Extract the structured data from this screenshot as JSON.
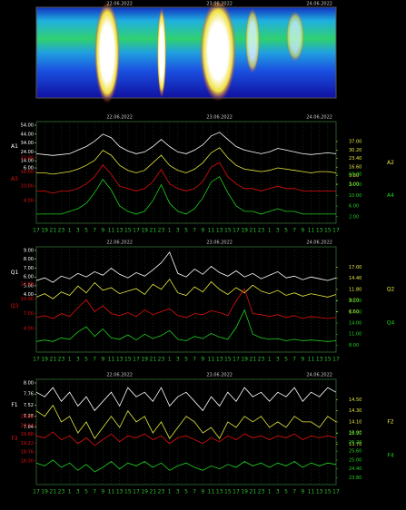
{
  "chart_data": [
    {
      "type": "line",
      "categories": [
        "17",
        "19",
        "21",
        "23",
        "1",
        "3",
        "5",
        "7",
        "9",
        "11",
        "13",
        "15",
        "17",
        "19",
        "21",
        "23",
        "1",
        "3",
        "5",
        "7",
        "9",
        "11",
        "13",
        "15",
        "17",
        "19",
        "21",
        "23",
        "1",
        "3",
        "5",
        "7",
        "9",
        "11",
        "13",
        "15",
        "17"
      ],
      "dates": [
        "22.06.2022",
        "23.06.2022",
        "24.06.2022"
      ],
      "series": [
        {
          "name": "A1",
          "color": "#ffffff",
          "axis": "y",
          "ylim": [
            6,
            54
          ],
          "yticks": [
            {
              "value": 6,
              "label": "6.00"
            },
            {
              "value": 14,
              "label": "14.00"
            },
            {
              "value": 24,
              "label": "24.00"
            },
            {
              "value": 34,
              "label": "34.00"
            },
            {
              "value": 44,
              "label": "44.00"
            },
            {
              "value": 54,
              "label": "54.00"
            }
          ],
          "values": [
            22,
            21,
            20,
            21,
            22,
            26,
            30,
            36,
            44,
            40,
            30,
            25,
            22,
            24,
            30,
            38,
            30,
            24,
            22,
            26,
            32,
            42,
            46,
            38,
            30,
            26,
            24,
            22,
            24,
            28,
            26,
            24,
            22,
            21,
            22,
            23,
            22
          ]
        },
        {
          "name": "A2",
          "color": "#e8e840",
          "axis": "y2",
          "ylim": [
            3,
            37
          ],
          "yticks": [
            {
              "value": 3,
              "label": "3.00"
            },
            {
              "value": 9.8,
              "label": "9.80"
            },
            {
              "value": 16.6,
              "label": "16.60"
            },
            {
              "value": 23.4,
              "label": "23.40"
            },
            {
              "value": 30.2,
              "label": "30.20"
            },
            {
              "value": 37,
              "label": "37.00"
            }
          ],
          "values": [
            12,
            12,
            11,
            12,
            13,
            15,
            18,
            22,
            30,
            26,
            18,
            14,
            12,
            14,
            20,
            26,
            18,
            14,
            12,
            15,
            20,
            28,
            32,
            24,
            18,
            15,
            14,
            13,
            14,
            16,
            15,
            14,
            13,
            12,
            13,
            13,
            12
          ]
        },
        {
          "name": "A3",
          "color": "#e01010",
          "axis": "y",
          "ylim": [
            4,
            22
          ],
          "yticks": [
            {
              "value": 4,
              "label": "4.00"
            },
            {
              "value": 10,
              "label": "10.00"
            },
            {
              "value": 16,
              "label": "16.00"
            },
            {
              "value": 22,
              "label": "22.00"
            }
          ],
          "values": [
            8,
            8,
            7,
            8,
            8,
            9,
            11,
            14,
            19,
            15,
            10,
            9,
            8,
            9,
            12,
            17,
            11,
            9,
            8,
            9,
            12,
            18,
            20,
            14,
            11,
            9,
            9,
            8,
            9,
            10,
            9,
            9,
            8,
            8,
            8,
            8,
            8
          ]
        },
        {
          "name": "A4",
          "color": "#20d020",
          "axis": "y2",
          "ylim": [
            2,
            18
          ],
          "yticks": [
            {
              "value": 2,
              "label": "2.00"
            },
            {
              "value": 6,
              "label": "6.00"
            },
            {
              "value": 10,
              "label": "10.00"
            },
            {
              "value": 14,
              "label": "14.00"
            },
            {
              "value": 18,
              "label": "18.00"
            }
          ],
          "values": [
            3,
            3,
            3,
            3,
            4,
            5,
            7,
            11,
            16,
            12,
            6,
            4,
            3,
            4,
            8,
            14,
            7,
            4,
            3,
            5,
            9,
            15,
            17,
            11,
            6,
            4,
            4,
            3,
            4,
            5,
            4,
            4,
            3,
            3,
            3,
            3,
            3
          ]
        }
      ]
    },
    {
      "type": "line",
      "categories": [
        "17",
        "19",
        "21",
        "23",
        "1",
        "3",
        "5",
        "7",
        "9",
        "11",
        "13",
        "15",
        "17",
        "19",
        "21",
        "23",
        "1",
        "3",
        "5",
        "7",
        "9",
        "11",
        "13",
        "15",
        "17",
        "19",
        "21",
        "23",
        "1",
        "3",
        "5",
        "7",
        "9",
        "11",
        "13",
        "15",
        "17"
      ],
      "dates": [
        "22.06.2022",
        "23.06.2022",
        "24.06.2022"
      ],
      "series": [
        {
          "name": "Q1",
          "color": "#ffffff",
          "axis": "y",
          "ylim": [
            4,
            9
          ],
          "yticks": [
            {
              "value": 4,
              "label": "4.00"
            },
            {
              "value": 5,
              "label": "5.00"
            },
            {
              "value": 6,
              "label": "6.00"
            },
            {
              "value": 7,
              "label": "7.00"
            },
            {
              "value": 8,
              "label": "8.00"
            },
            {
              "value": 9,
              "label": "9.00"
            }
          ],
          "values": [
            5.6,
            5.9,
            5.4,
            6.1,
            5.8,
            6.4,
            6.0,
            6.6,
            6.2,
            7.0,
            6.3,
            5.9,
            6.5,
            6.1,
            6.8,
            7.6,
            8.8,
            6.4,
            6.0,
            6.9,
            6.3,
            7.2,
            6.5,
            6.1,
            6.7,
            6.0,
            6.4,
            5.8,
            6.2,
            6.6,
            5.9,
            6.1,
            5.7,
            6.0,
            5.8,
            5.6,
            5.9
          ]
        },
        {
          "name": "Q2",
          "color": "#e8e840",
          "axis": "y2",
          "ylim": [
            6.6,
            17
          ],
          "yticks": [
            {
              "value": 6.6,
              "label": "6.60"
            },
            {
              "value": 9.2,
              "label": "9.20"
            },
            {
              "value": 11.8,
              "label": "11.80"
            },
            {
              "value": 14.4,
              "label": "14.40"
            },
            {
              "value": 17,
              "label": "17.00"
            }
          ],
          "values": [
            10,
            10.8,
            9.6,
            11.2,
            10.4,
            12.6,
            11,
            13.4,
            11.6,
            12.2,
            10.8,
            11.4,
            12,
            10.6,
            13,
            11.8,
            14.2,
            11,
            10.4,
            12.4,
            11.2,
            13.6,
            11.8,
            10.6,
            12.2,
            11,
            12.8,
            11.4,
            10.8,
            11.6,
            10.4,
            11,
            10.2,
            10.8,
            10.4,
            10,
            10.6
          ]
        },
        {
          "name": "Q3",
          "color": "#e01010",
          "axis": "y",
          "ylim": [
            4,
            13
          ],
          "yticks": [
            {
              "value": 4,
              "label": "4.00"
            },
            {
              "value": 7,
              "label": "7.00"
            },
            {
              "value": 10,
              "label": "10.00"
            },
            {
              "value": 13,
              "label": "13.00"
            }
          ],
          "values": [
            6.2,
            6.6,
            6,
            7,
            6.4,
            8.2,
            9.8,
            7.4,
            8.6,
            7,
            6.6,
            7.2,
            6.4,
            7.8,
            6.8,
            7.4,
            8,
            6.6,
            6.2,
            7,
            6.8,
            7.6,
            7.2,
            6.6,
            9.6,
            12,
            7,
            6.8,
            6.4,
            6.8,
            6.2,
            6.6,
            6,
            6.4,
            6.2,
            6,
            6.2
          ]
        },
        {
          "name": "Q4",
          "color": "#20d020",
          "axis": "y2",
          "ylim": [
            8,
            20
          ],
          "yticks": [
            {
              "value": 8,
              "label": "8.00"
            },
            {
              "value": 11,
              "label": "11.00"
            },
            {
              "value": 14,
              "label": "14.00"
            },
            {
              "value": 17,
              "label": "17.00"
            },
            {
              "value": 20,
              "label": "20.00"
            }
          ],
          "values": [
            9,
            9.4,
            9,
            10,
            9.6,
            11.6,
            13,
            10.4,
            12.4,
            10,
            9.6,
            10.8,
            9.4,
            11,
            9.8,
            10.6,
            12,
            9.6,
            9.2,
            10.4,
            9.8,
            11.2,
            10.2,
            9.6,
            12.8,
            17.6,
            11,
            10,
            9.6,
            9.8,
            9.2,
            9.6,
            9.2,
            9.4,
            9.2,
            9,
            9.2
          ]
        }
      ]
    },
    {
      "type": "line",
      "categories": [
        "17",
        "19",
        "21",
        "23",
        "1",
        "3",
        "5",
        "7",
        "9",
        "11",
        "13",
        "15",
        "17",
        "19",
        "21",
        "23",
        "1",
        "3",
        "5",
        "7",
        "9",
        "11",
        "13",
        "15",
        "17",
        "19",
        "21",
        "23",
        "1",
        "3",
        "5",
        "7",
        "9",
        "11",
        "13",
        "15",
        "17"
      ],
      "dates": [
        "22.06.2022",
        "23.06.2022",
        "24.06.2022"
      ],
      "series": [
        {
          "name": "F1",
          "color": "#ffffff",
          "axis": "y",
          "ylim": [
            7.04,
            8
          ],
          "yticks": [
            {
              "value": 7.04,
              "label": "7.04"
            },
            {
              "value": 7.28,
              "label": "7.28"
            },
            {
              "value": 7.52,
              "label": "7.52"
            },
            {
              "value": 7.76,
              "label": "7.76"
            },
            {
              "value": 8,
              "label": "8.00"
            }
          ],
          "values": [
            7.8,
            7.7,
            7.9,
            7.6,
            7.8,
            7.5,
            7.7,
            7.4,
            7.6,
            7.8,
            7.5,
            7.9,
            7.7,
            7.8,
            7.6,
            7.9,
            7.5,
            7.7,
            7.8,
            7.6,
            7.4,
            7.7,
            7.5,
            7.8,
            7.6,
            7.9,
            7.7,
            7.8,
            7.6,
            7.8,
            7.7,
            7.9,
            7.6,
            7.8,
            7.7,
            7.9,
            7.8
          ]
        },
        {
          "name": "F2",
          "color": "#e8e840",
          "axis": "y2",
          "ylim": [
            13.7,
            14.5
          ],
          "yticks": [
            {
              "value": 13.7,
              "label": "13.70"
            },
            {
              "value": 13.9,
              "label": "13.90"
            },
            {
              "value": 14.1,
              "label": "14.10"
            },
            {
              "value": 14.3,
              "label": "14.30"
            },
            {
              "value": 14.5,
              "label": "14.50"
            }
          ],
          "values": [
            14.3,
            14.2,
            14.4,
            14.1,
            14.2,
            13.9,
            14.1,
            13.8,
            14.0,
            14.2,
            14.0,
            14.3,
            14.1,
            14.2,
            13.9,
            14.1,
            13.8,
            14.0,
            14.2,
            14.1,
            13.9,
            14.0,
            13.8,
            14.1,
            14.0,
            14.2,
            14.1,
            14.2,
            14.0,
            14.1,
            14.0,
            14.2,
            14.1,
            14.1,
            14.0,
            14.2,
            14.1
          ]
        },
        {
          "name": "F3",
          "color": "#e01010",
          "axis": "y",
          "ylim": [
            18.3,
            20.6
          ],
          "yticks": [
            {
              "value": 18.3,
              "label": "18.30"
            },
            {
              "value": 18.76,
              "label": "18.76"
            },
            {
              "value": 19.22,
              "label": "19.22"
            },
            {
              "value": 19.68,
              "label": "19.68"
            },
            {
              "value": 20.14,
              "label": "20.14"
            },
            {
              "value": 20.6,
              "label": "20.60"
            }
          ],
          "values": [
            19.6,
            19.5,
            19.8,
            19.4,
            19.6,
            19.2,
            19.5,
            19.1,
            19.4,
            19.7,
            19.3,
            19.6,
            19.5,
            19.7,
            19.4,
            19.6,
            19.2,
            19.5,
            19.6,
            19.4,
            19.2,
            19.5,
            19.3,
            19.6,
            19.4,
            19.7,
            19.5,
            19.6,
            19.4,
            19.6,
            19.5,
            19.7,
            19.4,
            19.6,
            19.5,
            19.6,
            19.5
          ]
        },
        {
          "name": "F4",
          "color": "#20d020",
          "axis": "y2",
          "ylim": [
            23.8,
            26.8
          ],
          "yticks": [
            {
              "value": 23.8,
              "label": "23.80"
            },
            {
              "value": 24.4,
              "label": "24.40"
            },
            {
              "value": 25,
              "label": "25.00"
            },
            {
              "value": 25.6,
              "label": "25.60"
            },
            {
              "value": 26.2,
              "label": "26.20"
            },
            {
              "value": 26.8,
              "label": "26.80"
            }
          ],
          "values": [
            24.8,
            24.6,
            25.0,
            24.5,
            24.8,
            24.3,
            24.7,
            24.2,
            24.5,
            24.9,
            24.4,
            24.8,
            24.6,
            24.9,
            24.5,
            24.8,
            24.3,
            24.6,
            24.8,
            24.5,
            24.3,
            24.6,
            24.4,
            24.7,
            24.5,
            24.9,
            24.6,
            24.8,
            24.5,
            24.8,
            24.6,
            24.9,
            24.5,
            24.8,
            24.6,
            24.8,
            24.7
          ]
        }
      ]
    }
  ]
}
